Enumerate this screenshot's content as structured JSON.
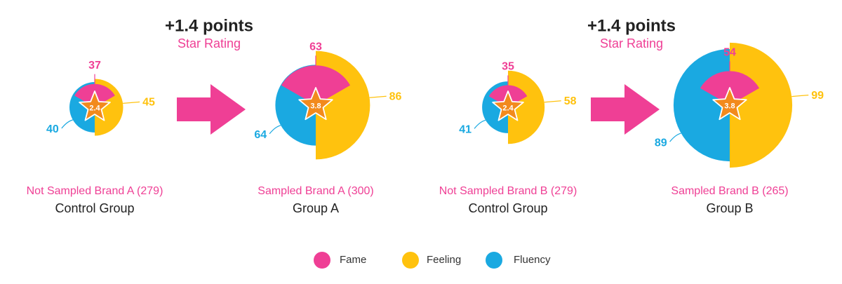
{
  "colors": {
    "fame": "#ef3f95",
    "feeling": "#ffc20e",
    "fluency": "#1aa9e1",
    "star": "#f28a1d",
    "arrow": "#ef3f95",
    "headline": "#222222",
    "group_label": "#ef3f95",
    "group_sub": "#222222"
  },
  "comparisons": [
    {
      "headline": "+1.4 points",
      "subheadline": "Star Rating"
    },
    {
      "headline": "+1.4 points",
      "subheadline": "Star Rating"
    }
  ],
  "legend": [
    {
      "name": "Fame",
      "color": "#ef3f95"
    },
    {
      "name": "Feeling",
      "color": "#ffc20e"
    },
    {
      "name": "Fluency",
      "color": "#1aa9e1"
    }
  ],
  "chart_data": {
    "type": "polar-area",
    "series_names": [
      "Fame",
      "Feeling",
      "Fluency"
    ],
    "groups": [
      {
        "label": "Not Sampled Brand A (279)",
        "sublabel": "Control Group",
        "star_rating": "2.4",
        "fame": 37,
        "feeling": 45,
        "fluency": 40
      },
      {
        "label": "Sampled Brand A (300)",
        "sublabel": "Group A",
        "star_rating": "3.8",
        "fame": 63,
        "feeling": 86,
        "fluency": 64
      },
      {
        "label": "Not Sampled Brand B (279)",
        "sublabel": "Control Group",
        "star_rating": "2.4",
        "fame": 35,
        "feeling": 58,
        "fluency": 41
      },
      {
        "label": "Sampled Brand B (265)",
        "sublabel": "Group B",
        "star_rating": "3.8",
        "fame": 54,
        "feeling": 99,
        "fluency": 89
      }
    ]
  }
}
